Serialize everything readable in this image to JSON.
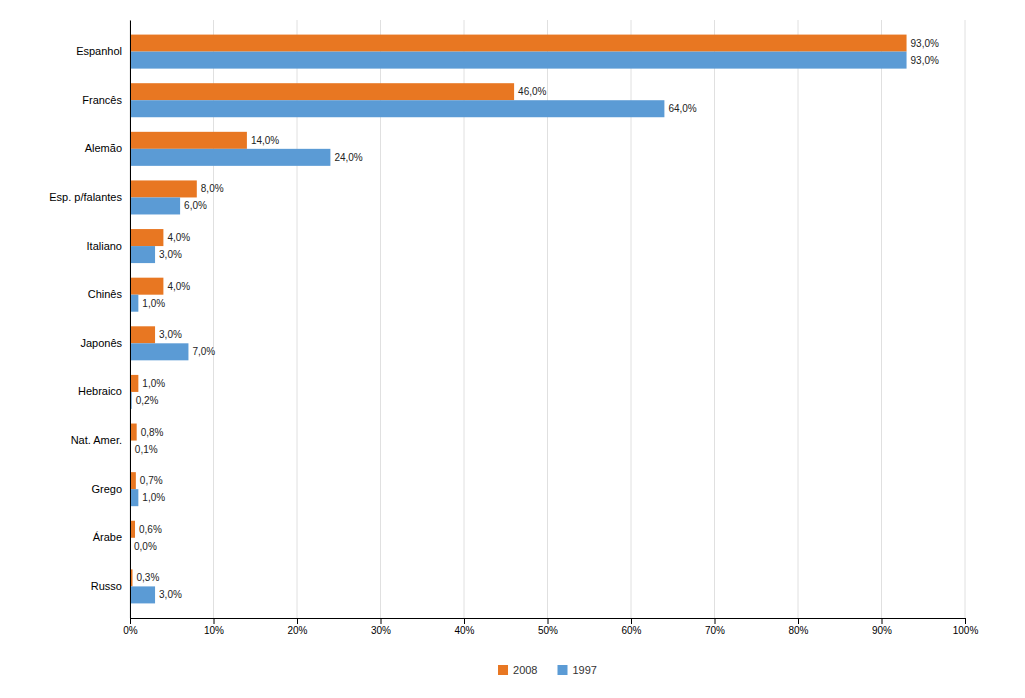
{
  "chart_data": {
    "type": "bar",
    "orientation": "horizontal",
    "categories": [
      "Espanhol",
      "Francês",
      "Alemão",
      "Esp. p/falantes",
      "Italiano",
      "Chinês",
      "Japonês",
      "Hebraico",
      "Nat. Amer.",
      "Grego",
      "Árabe",
      "Russo"
    ],
    "series": [
      {
        "name": "2008",
        "color": "#E87722",
        "values": [
          93.0,
          46.0,
          14.0,
          8.0,
          4.0,
          4.0,
          3.0,
          1.0,
          0.8,
          0.7,
          0.6,
          0.3
        ],
        "value_labels": [
          "93,0%",
          "46,0%",
          "14,0%",
          "8,0%",
          "4,0%",
          "4,0%",
          "3,0%",
          "1,0%",
          "0,8%",
          "0,7%",
          "0,6%",
          "0,3%"
        ]
      },
      {
        "name": "1997",
        "color": "#5B9BD5",
        "values": [
          93.0,
          64.0,
          24.0,
          6.0,
          3.0,
          1.0,
          7.0,
          0.2,
          0.1,
          1.0,
          0.0,
          3.0
        ],
        "value_labels": [
          "93,0%",
          "64,0%",
          "24,0%",
          "6,0%",
          "3,0%",
          "1,0%",
          "7,0%",
          "0,2%",
          "0,1%",
          "1,0%",
          "0,0%",
          "3,0%"
        ]
      }
    ],
    "xlim": [
      0,
      100
    ],
    "xticks": [
      {
        "value": 0,
        "label": "0%"
      },
      {
        "value": 10,
        "label": "10%"
      },
      {
        "value": 20,
        "label": "20%"
      },
      {
        "value": 30,
        "label": "30%"
      },
      {
        "value": 40,
        "label": "40%"
      },
      {
        "value": 50,
        "label": "50%"
      },
      {
        "value": 60,
        "label": "60%"
      },
      {
        "value": 70,
        "label": "70%"
      },
      {
        "value": 80,
        "label": "80%"
      },
      {
        "value": 90,
        "label": "90%"
      },
      {
        "value": 100,
        "label": "100%"
      }
    ],
    "grid": true,
    "data_labels": true,
    "legend": "bottom"
  }
}
